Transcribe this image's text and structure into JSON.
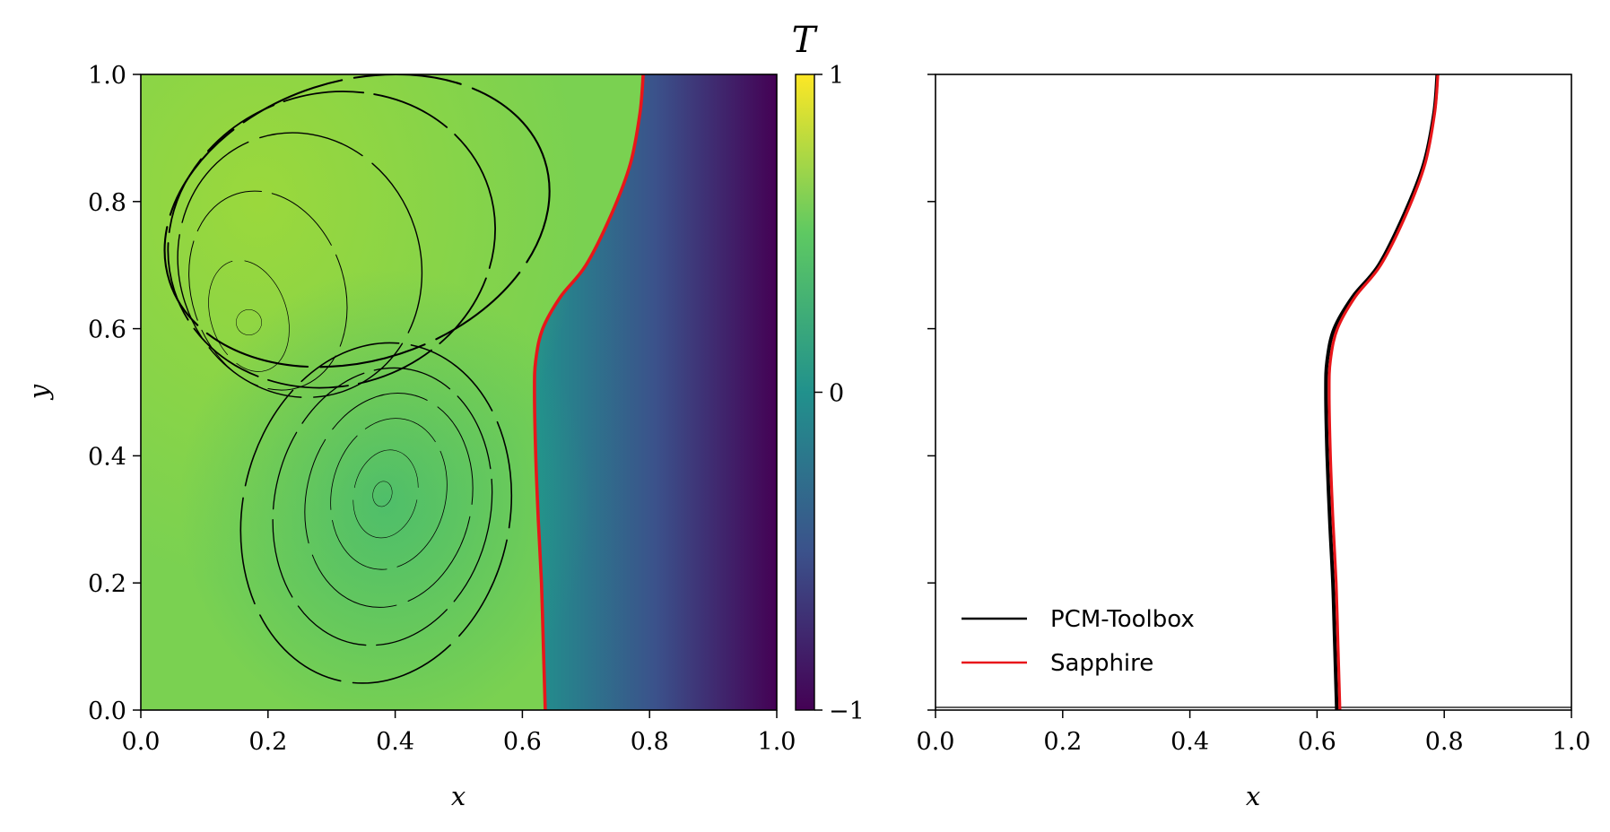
{
  "chart_data": [
    {
      "type": "heatmap",
      "description_free": true,
      "field": "T",
      "xlabel": "x",
      "ylabel": "y",
      "xlim": [
        0.0,
        1.0
      ],
      "ylim": [
        0.0,
        1.0
      ],
      "xticks": [
        "0.0",
        "0.2",
        "0.4",
        "0.6",
        "0.8",
        "1.0"
      ],
      "yticks": [
        "0.0",
        "0.2",
        "0.4",
        "0.6",
        "0.8",
        "1.0"
      ],
      "colorbar": {
        "title": "T",
        "range": [
          -1,
          1
        ],
        "ticks": [
          "1",
          "0",
          "−1"
        ],
        "colormap": [
          "#440154",
          "#3b528b",
          "#21918c",
          "#5ec962",
          "#fde725"
        ]
      },
      "interface_curve": {
        "color": "#e8161a",
        "x": [
          0.636,
          0.633,
          0.63,
          0.625,
          0.621,
          0.619,
          0.621,
          0.632,
          0.66,
          0.7,
          0.74,
          0.77,
          0.785,
          0.79
        ],
        "y": [
          0.0,
          0.1,
          0.2,
          0.3,
          0.4,
          0.5,
          0.55,
          0.6,
          0.65,
          0.7,
          0.78,
          0.86,
          0.94,
          1.0
        ]
      },
      "streamlines": "black"
    },
    {
      "type": "line",
      "xlabel": "x",
      "ylabel": "",
      "xlim": [
        0.0,
        1.0
      ],
      "ylim": [
        0.0,
        1.0
      ],
      "xticks": [
        "0.0",
        "0.2",
        "0.4",
        "0.6",
        "0.8",
        "1.0"
      ],
      "legend_position": "lower-left",
      "series": [
        {
          "name": "PCM-Toolbox",
          "color": "#000000",
          "x": [
            0.631,
            0.628,
            0.625,
            0.62,
            0.616,
            0.614,
            0.616,
            0.627,
            0.656,
            0.697,
            0.737,
            0.768,
            0.784,
            0.789
          ],
          "y": [
            0.0,
            0.1,
            0.2,
            0.3,
            0.4,
            0.5,
            0.55,
            0.6,
            0.65,
            0.7,
            0.78,
            0.86,
            0.94,
            1.0
          ]
        },
        {
          "name": "Sapphire",
          "color": "#e8161a",
          "x": [
            0.636,
            0.633,
            0.63,
            0.625,
            0.621,
            0.619,
            0.621,
            0.632,
            0.66,
            0.7,
            0.74,
            0.77,
            0.785,
            0.79
          ],
          "y": [
            0.0,
            0.1,
            0.2,
            0.3,
            0.4,
            0.5,
            0.55,
            0.6,
            0.65,
            0.7,
            0.78,
            0.86,
            0.94,
            1.0
          ]
        }
      ]
    }
  ]
}
